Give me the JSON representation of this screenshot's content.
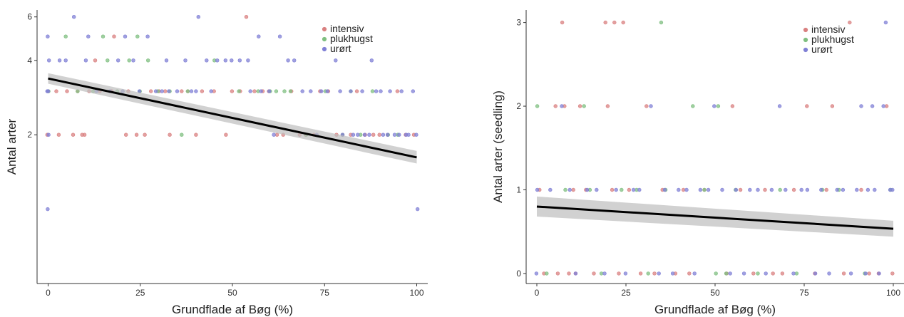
{
  "chart_data": [
    {
      "type": "scatter",
      "xlabel": "Grundflade af Bøg (%)",
      "ylabel": "Antal arter",
      "xlim": [
        -3,
        103
      ],
      "ylim": [
        0.5,
        6.4
      ],
      "ylog": true,
      "xticks": [
        0,
        25,
        50,
        75,
        100
      ],
      "yticks": [
        2,
        4,
        6
      ],
      "legend_position": "top-right",
      "grid": false,
      "series": [
        {
          "name": "intensiv",
          "color": "#d98080",
          "points": [
            [
              0,
              2
            ],
            [
              0,
              3
            ],
            [
              2,
              3
            ],
            [
              3,
              2
            ],
            [
              5,
              3
            ],
            [
              7,
              2
            ],
            [
              8,
              3
            ],
            [
              9,
              2
            ],
            [
              10,
              2
            ],
            [
              11,
              3
            ],
            [
              13,
              4
            ],
            [
              14,
              3
            ],
            [
              17,
              3
            ],
            [
              18,
              5
            ],
            [
              21,
              2
            ],
            [
              22,
              3
            ],
            [
              24,
              2
            ],
            [
              26,
              2
            ],
            [
              28,
              3
            ],
            [
              30,
              3
            ],
            [
              32,
              3
            ],
            [
              33,
              2
            ],
            [
              36,
              3
            ],
            [
              38,
              3
            ],
            [
              40,
              2
            ],
            [
              42,
              3
            ],
            [
              45,
              3
            ],
            [
              48,
              2
            ],
            [
              50,
              3
            ],
            [
              52,
              3
            ],
            [
              54,
              6
            ],
            [
              56,
              3
            ],
            [
              58,
              3
            ],
            [
              60,
              3
            ],
            [
              62,
              2
            ],
            [
              64,
              2
            ],
            [
              66,
              3
            ],
            [
              68,
              2
            ],
            [
              70,
              2
            ],
            [
              72,
              2
            ],
            [
              74,
              3
            ],
            [
              76,
              3
            ],
            [
              78,
              2
            ],
            [
              80,
              2
            ],
            [
              82,
              2
            ],
            [
              84,
              3
            ],
            [
              86,
              2
            ],
            [
              88,
              2
            ],
            [
              90,
              2
            ],
            [
              92,
              2
            ],
            [
              95,
              3
            ],
            [
              97,
              2
            ],
            [
              99,
              2
            ]
          ]
        },
        {
          "name": "plukhugst",
          "color": "#7fbf80",
          "points": [
            [
              0,
              3
            ],
            [
              5,
              5
            ],
            [
              8,
              3
            ],
            [
              12,
              3
            ],
            [
              15,
              5
            ],
            [
              16,
              4
            ],
            [
              19,
              3
            ],
            [
              22,
              4
            ],
            [
              24,
              5
            ],
            [
              25,
              3
            ],
            [
              27,
              4
            ],
            [
              30,
              3
            ],
            [
              33,
              3
            ],
            [
              36,
              2
            ],
            [
              38,
              3
            ],
            [
              45,
              4
            ],
            [
              52,
              3
            ],
            [
              57,
              3
            ],
            [
              60,
              3
            ],
            [
              62,
              3
            ],
            [
              64,
              3
            ],
            [
              66,
              3
            ],
            [
              70,
              2
            ],
            [
              75,
              3
            ],
            [
              80,
              2
            ],
            [
              82,
              3
            ],
            [
              85,
              2
            ],
            [
              88,
              3
            ],
            [
              92,
              2
            ],
            [
              95,
              2
            ]
          ]
        },
        {
          "name": "urørt",
          "color": "#8080d6",
          "points": [
            [
              0,
              1
            ],
            [
              0,
              2
            ],
            [
              0,
              3
            ],
            [
              0,
              3
            ],
            [
              0,
              4
            ],
            [
              0,
              5
            ],
            [
              3,
              4
            ],
            [
              5,
              4
            ],
            [
              7,
              6
            ],
            [
              10,
              4
            ],
            [
              11,
              5
            ],
            [
              13,
              3
            ],
            [
              17,
              3
            ],
            [
              19,
              4
            ],
            [
              20,
              3
            ],
            [
              21,
              5
            ],
            [
              23,
              4
            ],
            [
              25,
              3
            ],
            [
              27,
              5
            ],
            [
              29,
              3
            ],
            [
              31,
              3
            ],
            [
              32,
              4
            ],
            [
              33,
              3
            ],
            [
              35,
              3
            ],
            [
              37,
              4
            ],
            [
              39,
              3
            ],
            [
              40,
              3
            ],
            [
              41,
              6
            ],
            [
              43,
              4
            ],
            [
              44,
              3
            ],
            [
              46,
              4
            ],
            [
              48,
              4
            ],
            [
              50,
              4
            ],
            [
              52,
              4
            ],
            [
              54,
              4
            ],
            [
              55,
              3
            ],
            [
              57,
              5
            ],
            [
              58,
              3
            ],
            [
              60,
              3
            ],
            [
              61,
              2
            ],
            [
              63,
              5
            ],
            [
              65,
              4
            ],
            [
              67,
              4
            ],
            [
              69,
              3
            ],
            [
              71,
              3
            ],
            [
              73,
              2
            ],
            [
              74,
              3
            ],
            [
              76,
              3
            ],
            [
              78,
              4
            ],
            [
              79,
              3
            ],
            [
              80,
              2
            ],
            [
              82,
              3
            ],
            [
              83,
              2
            ],
            [
              84,
              2
            ],
            [
              85,
              3
            ],
            [
              86,
              2
            ],
            [
              87,
              2
            ],
            [
              88,
              4
            ],
            [
              89,
              3
            ],
            [
              90,
              3
            ],
            [
              91,
              2
            ],
            [
              92,
              2
            ],
            [
              93,
              3
            ],
            [
              94,
              2
            ],
            [
              95,
              2
            ],
            [
              96,
              3
            ],
            [
              97,
              2
            ],
            [
              98,
              2
            ],
            [
              99,
              3
            ],
            [
              100,
              1
            ],
            [
              100,
              2
            ]
          ]
        }
      ],
      "trend": {
        "x": [
          0,
          100
        ],
        "y": [
          3.38,
          1.62
        ],
        "ci": [
          [
            3.22,
            3.55
          ],
          [
            1.53,
            1.72
          ]
        ]
      }
    },
    {
      "type": "scatter",
      "xlabel": "Grundflade af Bøg (%)",
      "ylabel": "Antal arter (seedling)",
      "xlim": [
        -3,
        103
      ],
      "ylim": [
        -0.12,
        3.15
      ],
      "ylog": false,
      "xticks": [
        0,
        25,
        50,
        75,
        100
      ],
      "yticks": [
        0,
        1,
        2,
        3
      ],
      "legend_position": "top-right",
      "grid": false,
      "series": [
        {
          "name": "intensiv",
          "color": "#d98080",
          "points": [
            [
              1,
              1
            ],
            [
              2,
              0
            ],
            [
              5,
              2
            ],
            [
              6,
              0
            ],
            [
              7,
              3
            ],
            [
              8,
              2
            ],
            [
              9,
              0
            ],
            [
              10,
              1
            ],
            [
              11,
              0
            ],
            [
              12,
              2
            ],
            [
              14,
              1
            ],
            [
              16,
              0
            ],
            [
              19,
              3
            ],
            [
              20,
              2
            ],
            [
              21,
              1
            ],
            [
              22,
              3
            ],
            [
              23,
              0
            ],
            [
              24,
              3
            ],
            [
              26,
              1
            ],
            [
              29,
              0
            ],
            [
              31,
              2
            ],
            [
              33,
              0
            ],
            [
              35,
              1
            ],
            [
              39,
              0
            ],
            [
              41,
              1
            ],
            [
              43,
              0
            ],
            [
              47,
              1
            ],
            [
              53,
              0
            ],
            [
              55,
              2
            ],
            [
              57,
              1
            ],
            [
              61,
              0
            ],
            [
              64,
              1
            ],
            [
              66,
              0
            ],
            [
              69,
              0
            ],
            [
              72,
              1
            ],
            [
              76,
              2
            ],
            [
              78,
              0
            ],
            [
              81,
              1
            ],
            [
              83,
              2
            ],
            [
              86,
              0
            ],
            [
              88,
              3
            ],
            [
              91,
              1
            ],
            [
              93,
              0
            ],
            [
              96,
              0
            ],
            [
              98,
              2
            ],
            [
              100,
              0
            ]
          ]
        },
        {
          "name": "plukhugst",
          "color": "#7fbf80",
          "points": [
            [
              0,
              2
            ],
            [
              3,
              0
            ],
            [
              8,
              1
            ],
            [
              13,
              2
            ],
            [
              15,
              1
            ],
            [
              18,
              0
            ],
            [
              24,
              1
            ],
            [
              28,
              1
            ],
            [
              31,
              0
            ],
            [
              35,
              3
            ],
            [
              36,
              1
            ],
            [
              44,
              2
            ],
            [
              47,
              1
            ],
            [
              50,
              0
            ],
            [
              51,
              2
            ],
            [
              53,
              0
            ],
            [
              56,
              1
            ],
            [
              62,
              0
            ],
            [
              68,
              1
            ],
            [
              73,
              0
            ],
            [
              80,
              1
            ],
            [
              85,
              1
            ],
            [
              92,
              0
            ],
            [
              99,
              1
            ]
          ]
        },
        {
          "name": "urørt",
          "color": "#8080d6",
          "points": [
            [
              0,
              0
            ],
            [
              0,
              1
            ],
            [
              4,
              1
            ],
            [
              7,
              2
            ],
            [
              9,
              1
            ],
            [
              11,
              0
            ],
            [
              14,
              1
            ],
            [
              17,
              1
            ],
            [
              19,
              0
            ],
            [
              22,
              1
            ],
            [
              25,
              0
            ],
            [
              27,
              1
            ],
            [
              29,
              1
            ],
            [
              32,
              2
            ],
            [
              34,
              0
            ],
            [
              36,
              1
            ],
            [
              38,
              0
            ],
            [
              40,
              1
            ],
            [
              42,
              1
            ],
            [
              44,
              0
            ],
            [
              46,
              1
            ],
            [
              48,
              1
            ],
            [
              50,
              2
            ],
            [
              52,
              1
            ],
            [
              54,
              0
            ],
            [
              56,
              1
            ],
            [
              58,
              0
            ],
            [
              60,
              1
            ],
            [
              62,
              1
            ],
            [
              64,
              0
            ],
            [
              66,
              1
            ],
            [
              68,
              2
            ],
            [
              70,
              1
            ],
            [
              72,
              0
            ],
            [
              74,
              1
            ],
            [
              76,
              1
            ],
            [
              78,
              0
            ],
            [
              80,
              1
            ],
            [
              82,
              0
            ],
            [
              84,
              1
            ],
            [
              86,
              1
            ],
            [
              88,
              0
            ],
            [
              90,
              1
            ],
            [
              91,
              2
            ],
            [
              92,
              0
            ],
            [
              93,
              1
            ],
            [
              94,
              2
            ],
            [
              95,
              1
            ],
            [
              96,
              0
            ],
            [
              97,
              2
            ],
            [
              98,
              3
            ],
            [
              99,
              1
            ],
            [
              100,
              1
            ]
          ]
        }
      ],
      "trend": {
        "x": [
          0,
          100
        ],
        "y": [
          0.8,
          0.535
        ],
        "ci": [
          [
            0.68,
            0.92
          ],
          [
            0.44,
            0.63
          ]
        ]
      }
    }
  ]
}
